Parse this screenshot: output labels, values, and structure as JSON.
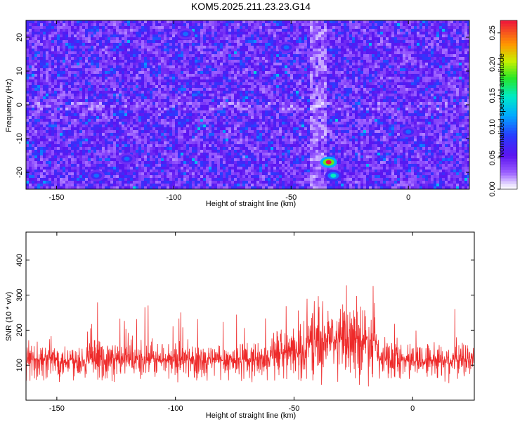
{
  "title": "KOM5.2025.211.23.23.G14",
  "chart_data": [
    {
      "type": "heatmap",
      "xlabel": "Height of straight line (km)",
      "ylabel": "Frequency (Hz)",
      "xlim": [
        -163,
        26
      ],
      "ylim": [
        -25,
        25
      ],
      "x_ticks": [
        "-150",
        "-100",
        "-50",
        "0"
      ],
      "y_ticks": [
        "-20",
        "-10",
        "0",
        "10",
        "20"
      ],
      "colorbar": {
        "label": "Normalized spectral amplitude",
        "range": [
          0,
          0.27
        ],
        "ticks": [
          "0.00",
          "0.05",
          "0.10",
          "0.15",
          "0.20",
          "0.25"
        ]
      },
      "hotspots": [
        {
          "x": -34,
          "y": -17,
          "value": 0.27
        },
        {
          "x": -32,
          "y": -21,
          "value": 0.15
        },
        {
          "x": -52,
          "y": 17,
          "value": 0.1
        },
        {
          "x": 0,
          "y": -8,
          "value": 0.1
        },
        {
          "x": -133,
          "y": -21,
          "value": 0.1
        },
        {
          "x": -120,
          "y": -16,
          "value": 0.1
        },
        {
          "x": -95,
          "y": 21,
          "value": 0.1
        }
      ]
    },
    {
      "type": "line",
      "xlabel": "Height of straight line (km)",
      "ylabel": "SNR (10 * v/v)",
      "xlim": [
        -163,
        26
      ],
      "ylim": [
        0,
        480
      ],
      "x_ticks": [
        "-150",
        "-100",
        "-50",
        "0"
      ],
      "y_ticks": [
        "100",
        "200",
        "300",
        "400"
      ],
      "series": [
        {
          "color": "#ee2a2a"
        }
      ]
    }
  ]
}
